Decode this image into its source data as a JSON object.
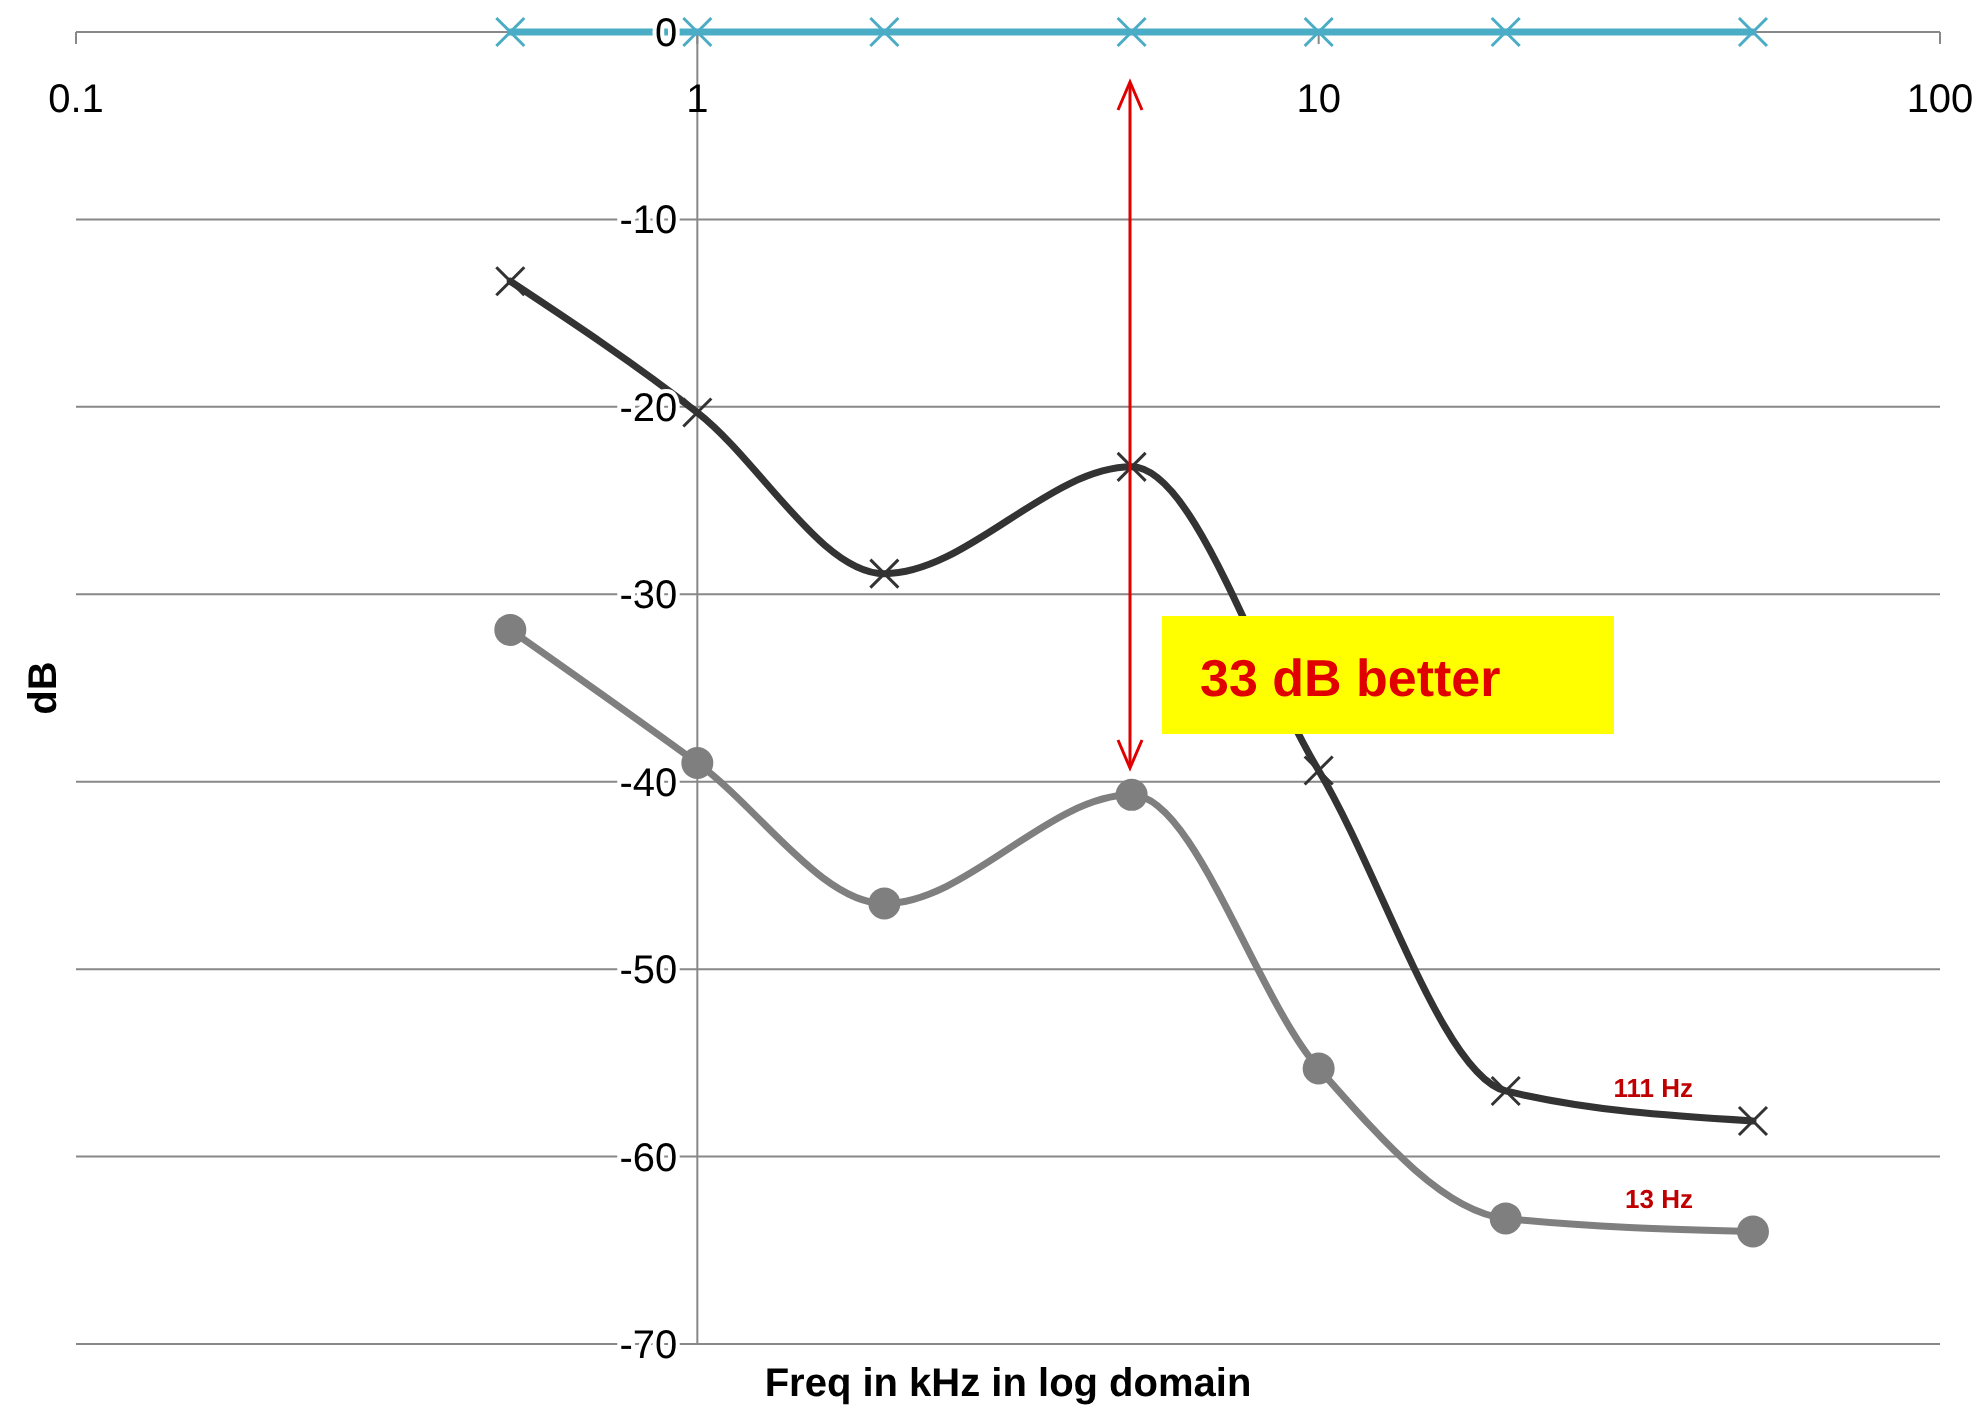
{
  "chart_data": {
    "type": "line",
    "xlabel": "Freq in kHz in log domain",
    "ylabel": "dB",
    "log": "x",
    "grid": "y",
    "xlim": [
      0.1,
      100
    ],
    "xticks": [
      0.1,
      1,
      10,
      100
    ],
    "ylim": [
      -70,
      0
    ],
    "yticks": [
      -70,
      -60,
      -50,
      -40,
      -30,
      -20,
      -10,
      0
    ],
    "x": [
      0.5,
      1,
      2,
      5,
      10,
      20,
      50
    ],
    "series": [
      {
        "name": "111 Hz",
        "color": "#333333",
        "marker": "cross",
        "values": [
          -13.3,
          -20.3,
          -28.9,
          -23.2,
          -39.4,
          -56.5,
          -58.1
        ]
      },
      {
        "name": "13 Hz",
        "color": "#7f7f7f",
        "marker": "circle",
        "values": [
          -31.9,
          -39.0,
          -46.5,
          -40.7,
          -55.3,
          -63.3,
          -64.0
        ]
      },
      {
        "color": "#4bacc6",
        "marker": "cross",
        "values": [
          0,
          0,
          0,
          0,
          0,
          0,
          0
        ]
      }
    ],
    "annotations": [
      "33 dB better"
    ]
  }
}
